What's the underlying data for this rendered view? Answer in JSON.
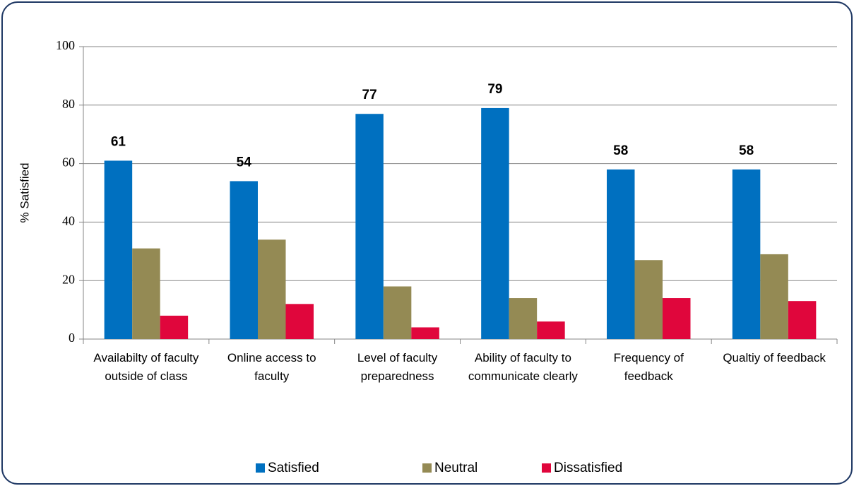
{
  "chart_data": {
    "type": "bar",
    "y_label": "% Satisfied",
    "categories": [
      "Availabilty of faculty outside of class",
      "Online access to faculty",
      "Level of faculty preparedness",
      "Ability of faculty to communicate clearly",
      "Frequency of feedback",
      "Qualtiy of feedback"
    ],
    "series": [
      {
        "name": "Satisfied",
        "color": "#0070c0",
        "values": [
          61,
          54,
          77,
          79,
          58,
          58
        ],
        "show_labels": true
      },
      {
        "name": "Neutral",
        "color": "#948a54",
        "values": [
          31,
          34,
          18,
          14,
          27,
          29
        ],
        "show_labels": false
      },
      {
        "name": "Dissatisfied",
        "color": "#e0063c",
        "values": [
          8,
          12,
          4,
          6,
          14,
          13
        ],
        "show_labels": false
      }
    ],
    "ylim": [
      0,
      100
    ],
    "yticks": [
      0,
      20,
      40,
      60,
      80,
      100
    ],
    "grid": true,
    "legend": "bottom"
  }
}
